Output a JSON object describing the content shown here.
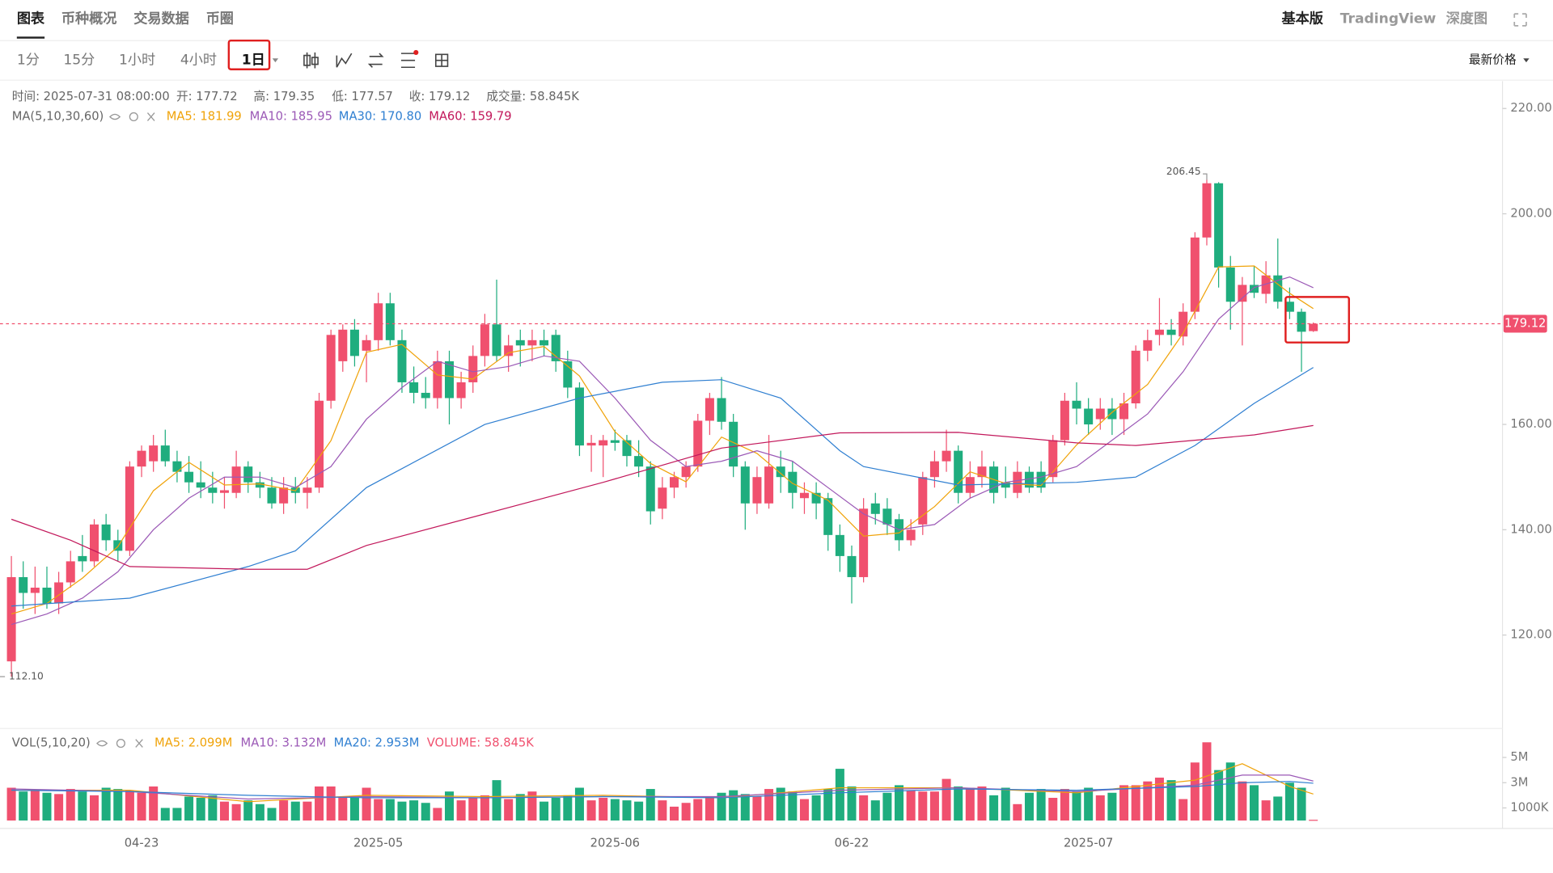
{
  "tabs": [
    "图表",
    "币种概况",
    "交易数据",
    "币圈"
  ],
  "views": [
    "基本版",
    "TradingView",
    "深度图"
  ],
  "intervals": [
    "1分",
    "15分",
    "1小时",
    "4小时",
    "1日"
  ],
  "price_type": "最新价格",
  "chart_data": {
    "type": "candlestick",
    "info": [
      "时间: 2025-07-31 08:00:00",
      "开: 177.72",
      "高: 179.35",
      "低: 177.57",
      "收: 179.12",
      "成交量: 58.845K"
    ],
    "ma_label": "MA(5,10,30,60)",
    "categories": [
      null,
      null,
      null,
      null,
      null,
      null,
      null,
      null,
      null,
      null,
      null,
      "04-23",
      null,
      null,
      null,
      null,
      null,
      null,
      null,
      null,
      null,
      null,
      null,
      null,
      null,
      null,
      null,
      null,
      null,
      null,
      null,
      "2025-05",
      null,
      null,
      null,
      null,
      null,
      null,
      null,
      null,
      null,
      null,
      null,
      null,
      null,
      null,
      null,
      null,
      null,
      null,
      null,
      "2025-06",
      null,
      null,
      null,
      null,
      null,
      null,
      null,
      null,
      null,
      null,
      null,
      null,
      null,
      null,
      null,
      null,
      null,
      null,
      null,
      "06-22",
      null,
      null,
      null,
      null,
      null,
      null,
      null,
      null,
      null,
      null,
      null,
      null,
      null,
      null,
      null,
      null,
      null,
      null,
      null,
      "2025-07",
      null,
      null,
      null,
      null,
      null,
      null,
      null,
      null,
      null,
      null,
      null,
      null,
      null,
      null,
      null,
      null,
      null,
      null,
      null
    ],
    "candles": [
      [
        115,
        135,
        112.1,
        131
      ],
      [
        131,
        134,
        125,
        128
      ],
      [
        128,
        133,
        124,
        129
      ],
      [
        129,
        133,
        125,
        126
      ],
      [
        126,
        132,
        124,
        130
      ],
      [
        130,
        136,
        129,
        134
      ],
      [
        135,
        139,
        132,
        134
      ],
      [
        134,
        142,
        133,
        141
      ],
      [
        141,
        143,
        136,
        138
      ],
      [
        138,
        140,
        134,
        136
      ],
      [
        136,
        153,
        135,
        152
      ],
      [
        152,
        156,
        150,
        155
      ],
      [
        153,
        158,
        151,
        156
      ],
      [
        156,
        159,
        152,
        153
      ],
      [
        153,
        155,
        149,
        151
      ],
      [
        151,
        154,
        147,
        149
      ],
      [
        149,
        153,
        146,
        148
      ],
      [
        148,
        151,
        145,
        147
      ],
      [
        147,
        150,
        144,
        147.5
      ],
      [
        147,
        155,
        146,
        152
      ],
      [
        152,
        153,
        147,
        149
      ],
      [
        149,
        151,
        146,
        148
      ],
      [
        148,
        150,
        144,
        145
      ],
      [
        145,
        150,
        143,
        148
      ],
      [
        148,
        150,
        145,
        147
      ],
      [
        147,
        150,
        144,
        148
      ],
      [
        148,
        166,
        147,
        164.5
      ],
      [
        164.5,
        178,
        163,
        177
      ],
      [
        172,
        179,
        170,
        178
      ],
      [
        178,
        180,
        171,
        173
      ],
      [
        174,
        177,
        168,
        176
      ],
      [
        176,
        185,
        174,
        183
      ],
      [
        183,
        185,
        175,
        176
      ],
      [
        176,
        178,
        166,
        168
      ],
      [
        168,
        171,
        164,
        166
      ],
      [
        166,
        169,
        163,
        165
      ],
      [
        165,
        174,
        163,
        172
      ],
      [
        172,
        174,
        160,
        165
      ],
      [
        165,
        170,
        163,
        168
      ],
      [
        168,
        175,
        166,
        173
      ],
      [
        173,
        181,
        171,
        179
      ],
      [
        179,
        187.5,
        172,
        173
      ],
      [
        173,
        177,
        170,
        175
      ],
      [
        176,
        178,
        171,
        175
      ],
      [
        175,
        178,
        172,
        176
      ],
      [
        176,
        178,
        173,
        175
      ],
      [
        177,
        178,
        170,
        172
      ],
      [
        172,
        174,
        165,
        167
      ],
      [
        167,
        168,
        154,
        156
      ],
      [
        156,
        158,
        151,
        156.5
      ],
      [
        156,
        158,
        150,
        157
      ],
      [
        157,
        159,
        155,
        156.5
      ],
      [
        157,
        158,
        152,
        154
      ],
      [
        154,
        157,
        150,
        152
      ],
      [
        152,
        153,
        141,
        143.5
      ],
      [
        144,
        150,
        142,
        148
      ],
      [
        148,
        151,
        146,
        150
      ],
      [
        150,
        153,
        148,
        152
      ],
      [
        152,
        162,
        151,
        160.7
      ],
      [
        160.7,
        166,
        158,
        165
      ],
      [
        165,
        169,
        159,
        160.5
      ],
      [
        160.5,
        162,
        150,
        152
      ],
      [
        152,
        153,
        140,
        145
      ],
      [
        145,
        152,
        143,
        150
      ],
      [
        145,
        158,
        144,
        152
      ],
      [
        152,
        155,
        147,
        150
      ],
      [
        151,
        153,
        144,
        147
      ],
      [
        146,
        149,
        143,
        147
      ],
      [
        147,
        149,
        142,
        145
      ],
      [
        146,
        147,
        136,
        139
      ],
      [
        139,
        141,
        132,
        135
      ],
      [
        135,
        137,
        126,
        131
      ],
      [
        131,
        146,
        130,
        144
      ],
      [
        145,
        147,
        141,
        143
      ],
      [
        144,
        146,
        139,
        141
      ],
      [
        142,
        143,
        136,
        138
      ],
      [
        138,
        142,
        137,
        140
      ],
      [
        141,
        151,
        139,
        150
      ],
      [
        150,
        155,
        148,
        153
      ],
      [
        153,
        159,
        151,
        155
      ],
      [
        155,
        156,
        145,
        147
      ],
      [
        147,
        153,
        146,
        150
      ],
      [
        150,
        155,
        148,
        152
      ],
      [
        152,
        153,
        145,
        147
      ],
      [
        149,
        152,
        146,
        148
      ],
      [
        147,
        153,
        146,
        151
      ],
      [
        151,
        152,
        147,
        148
      ],
      [
        151,
        153,
        147,
        148
      ],
      [
        150,
        158,
        149,
        157
      ],
      [
        157,
        166,
        156,
        164.5
      ],
      [
        164.5,
        168,
        160,
        163
      ],
      [
        163,
        165,
        158,
        160
      ],
      [
        161,
        165,
        159,
        163
      ],
      [
        163,
        165,
        158,
        161
      ],
      [
        161,
        166,
        158,
        164
      ],
      [
        164,
        175,
        163,
        174
      ],
      [
        174,
        178,
        172,
        176
      ],
      [
        177,
        184,
        175,
        178
      ],
      [
        178,
        180,
        175,
        177
      ],
      [
        176.7,
        183,
        175,
        181.4
      ],
      [
        181.4,
        196.5,
        180,
        195.5
      ],
      [
        195.5,
        206.45,
        194,
        205.8
      ],
      [
        205.8,
        206,
        186,
        189.8
      ],
      [
        189.8,
        192,
        178,
        183.3
      ],
      [
        183.3,
        188,
        175,
        186.5
      ],
      [
        186.5,
        190,
        184,
        185
      ],
      [
        184.8,
        191,
        183,
        188.3
      ],
      [
        188.3,
        195.3,
        182,
        183.3
      ],
      [
        183.3,
        186,
        180,
        181.4
      ],
      [
        181.4,
        182,
        170,
        177.6
      ],
      [
        177.72,
        179.35,
        177.57,
        179.12
      ]
    ],
    "up_color": "#f0506e",
    "down_color": "#1fad7e",
    "series": [
      {
        "name": "MA5: 181.99",
        "color": "#f0a30a",
        "x": [
          0,
          3,
          6,
          9,
          12,
          15,
          18,
          21,
          24,
          27,
          30,
          33,
          36,
          39,
          42,
          45,
          48,
          51,
          54,
          57,
          60,
          63,
          66,
          69,
          72,
          75,
          78,
          81,
          84,
          87,
          90,
          93,
          96,
          99,
          102,
          105,
          108,
          110
        ],
        "values": [
          124,
          126,
          130.8,
          136.8,
          147.4,
          152.8,
          148.5,
          148.7,
          147.4,
          156.9,
          173.7,
          175.2,
          169.4,
          168.6,
          173.6,
          174.8,
          169.2,
          158.6,
          152.6,
          149.1,
          157.6,
          154.5,
          148.8,
          145.6,
          138.8,
          139.4,
          144.4,
          151,
          148.8,
          148.4,
          156.1,
          162.3,
          167.6,
          177.3,
          189.9,
          190.1,
          184.9,
          181.99
        ]
      },
      {
        "name": "MA10: 185.95",
        "color": "#9b59b6",
        "x": [
          0,
          3,
          6,
          9,
          12,
          15,
          18,
          21,
          24,
          27,
          30,
          33,
          36,
          39,
          42,
          45,
          48,
          51,
          54,
          57,
          60,
          63,
          66,
          69,
          72,
          75,
          78,
          81,
          84,
          87,
          90,
          93,
          96,
          99,
          102,
          105,
          108,
          110
        ],
        "values": [
          122,
          124,
          127,
          132,
          140,
          146,
          150,
          150,
          148,
          152,
          161,
          167,
          172,
          170,
          171,
          173,
          172,
          165,
          157,
          152,
          153,
          155,
          153,
          148,
          143,
          140,
          141,
          146,
          149,
          150,
          152,
          157,
          162,
          170,
          180,
          186,
          188,
          185.95
        ]
      },
      {
        "name": "MA30: 170.80",
        "color": "#2f7fd1",
        "x": [
          0,
          10,
          20,
          24,
          30,
          40,
          48,
          55,
          60,
          65,
          70,
          72,
          80,
          90,
          95,
          100,
          105,
          110
        ],
        "values": [
          125.5,
          127,
          133,
          136,
          148,
          160,
          165,
          168,
          168.5,
          165,
          155,
          152,
          148.5,
          149,
          150,
          156,
          164,
          170.8
        ]
      },
      {
        "name": "MA60: 159.79",
        "color": "#c2185b",
        "x": [
          0,
          5,
          10,
          20,
          25,
          30,
          40,
          50,
          60,
          70,
          80,
          90,
          95,
          100,
          105,
          110
        ],
        "values": [
          142,
          138,
          133,
          132.5,
          132.5,
          137,
          143,
          149,
          155.5,
          158.4,
          158.5,
          156.5,
          156,
          157,
          158,
          159.79
        ]
      }
    ],
    "ylim": [
      102.44,
      225.19
    ],
    "yticks": [
      {
        "value": 220,
        "label": "220.00"
      },
      {
        "value": 200,
        "label": "200.00"
      },
      {
        "value": 160,
        "label": "160.00"
      },
      {
        "value": 140,
        "label": "140.00"
      },
      {
        "value": 120,
        "label": "120.00"
      }
    ],
    "last_price": {
      "value": 179.12,
      "label": "179.12"
    },
    "high_label": {
      "value": 206.45,
      "label": "206.45"
    },
    "low_label": {
      "value": 112.1,
      "label": "112.10"
    },
    "volume_label": "VOL(5,10,20)",
    "volume": [
      2.6,
      2.3,
      2.4,
      2.2,
      2.1,
      2.5,
      2.3,
      2.0,
      2.6,
      2.5,
      2.4,
      2.2,
      2.7,
      1.0,
      1.0,
      1.9,
      1.8,
      2.0,
      1.5,
      1.3,
      1.6,
      1.3,
      1.0,
      1.6,
      1.5,
      1.5,
      2.7,
      2.7,
      1.9,
      1.8,
      2.6,
      1.7,
      1.7,
      1.5,
      1.6,
      1.4,
      1.0,
      2.3,
      1.6,
      1.8,
      2.0,
      3.2,
      1.7,
      2.1,
      2.3,
      1.5,
      1.8,
      2.0,
      2.6,
      1.6,
      1.8,
      1.7,
      1.6,
      1.5,
      2.5,
      1.6,
      1.1,
      1.4,
      1.7,
      1.8,
      2.2,
      2.4,
      2.1,
      1.9,
      2.5,
      2.6,
      2.3,
      1.7,
      2.0,
      2.5,
      4.1,
      2.7,
      2.0,
      1.6,
      2.2,
      2.8,
      2.4,
      2.3,
      2.3,
      3.3,
      2.7,
      2.6,
      2.7,
      2.0,
      2.6,
      1.3,
      2.2,
      2.5,
      1.8,
      2.5,
      2.3,
      2.6,
      2.0,
      2.2,
      2.8,
      2.8,
      3.1,
      3.4,
      3.2,
      1.7,
      4.6,
      6.2,
      4.0,
      4.6,
      3.1,
      2.8,
      1.6,
      1.9,
      3.0,
      2.6,
      0.058845
    ],
    "volume_series": [
      {
        "name": "MA5: 2.099M",
        "color": "#f0a30a",
        "x": [
          0,
          10,
          20,
          30,
          40,
          50,
          60,
          70,
          80,
          90,
          100,
          104,
          108,
          110
        ],
        "values": [
          2.4,
          2.4,
          1.5,
          2.0,
          1.9,
          2.0,
          1.8,
          2.6,
          2.6,
          2.2,
          3.2,
          4.5,
          2.7,
          2.099
        ]
      },
      {
        "name": "MA10: 3.132M",
        "color": "#9b59b6",
        "x": [
          0,
          10,
          20,
          30,
          40,
          50,
          60,
          70,
          80,
          90,
          100,
          104,
          108,
          110
        ],
        "values": [
          2.5,
          2.3,
          1.7,
          1.9,
          1.8,
          1.9,
          1.9,
          2.4,
          2.6,
          2.3,
          2.8,
          3.6,
          3.6,
          3.132
        ]
      },
      {
        "name": "MA20: 2.953M",
        "color": "#2f7fd1",
        "x": [
          0,
          10,
          20,
          30,
          40,
          50,
          60,
          70,
          80,
          90,
          100,
          104,
          108,
          110
        ],
        "values": [
          2.4,
          2.3,
          2.0,
          1.8,
          1.8,
          1.9,
          1.8,
          2.2,
          2.5,
          2.4,
          2.7,
          3.0,
          3.1,
          2.953
        ]
      }
    ],
    "volume_now": "VOLUME: 58.845K",
    "vlim": [
      0,
      7
    ],
    "vticks": [
      {
        "value": 5,
        "label": "5M"
      },
      {
        "value": 3,
        "label": "3M"
      },
      {
        "value": 1,
        "label": "1000K"
      }
    ]
  }
}
